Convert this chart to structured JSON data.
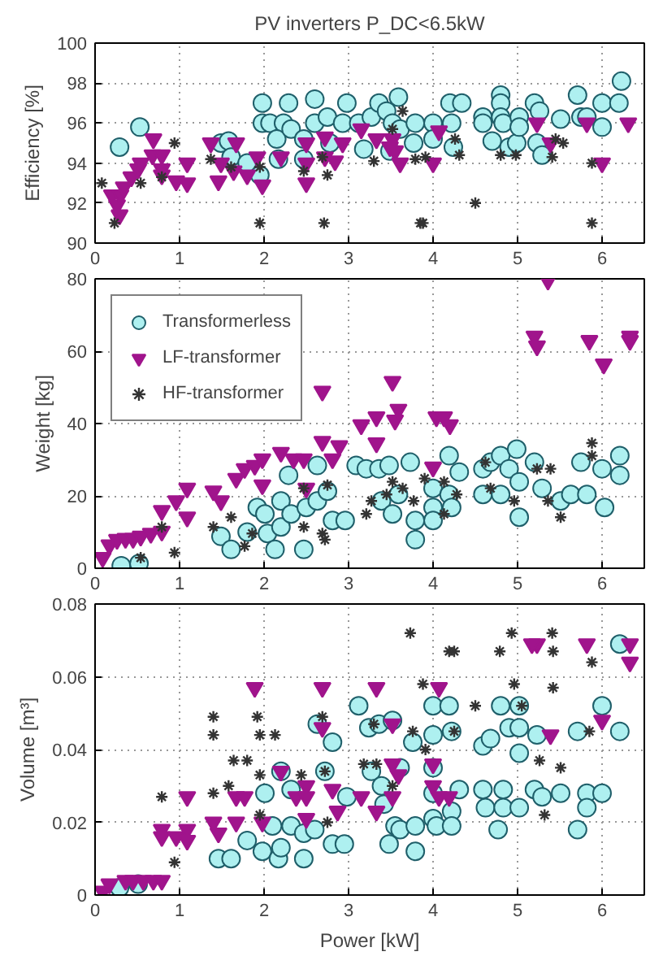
{
  "chart_data": [
    {
      "type": "scatter",
      "title": "PV inverters P_DC<6.5kW",
      "ylabel": "Efficiency [%]",
      "xlim": [
        0,
        6.5
      ],
      "xticks": [
        0,
        1,
        2,
        3,
        4,
        5,
        6
      ],
      "ylim": [
        90,
        100
      ],
      "yticks": [
        90,
        92,
        94,
        96,
        98,
        100
      ],
      "grid": true,
      "series": [
        {
          "color": "#aef0f0",
          "marker": "circle",
          "x": [
            0.29,
            0.53,
            1.49,
            1.58,
            1.61,
            1.8,
            1.95,
            1.98,
            1.98,
            2.07,
            2.23,
            2.15,
            2.17,
            2.29,
            2.32,
            2.47,
            2.47,
            2.6,
            2.6,
            2.75,
            2.78,
            2.93,
            2.98,
            3.12,
            3.18,
            3.27,
            3.36,
            3.45,
            3.52,
            3.59,
            3.49,
            3.61,
            3.77,
            3.79,
            4.0,
            4.0,
            4.2,
            4.34,
            4.22,
            4.24,
            4.59,
            4.59,
            4.7,
            4.8,
            4.8,
            4.8,
            4.83,
            4.9,
            4.99,
            5.02,
            5.02,
            5.2,
            5.23,
            5.26,
            5.29,
            5.51,
            5.71,
            5.75,
            5.82,
            6.0,
            6.0,
            6.2,
            6.23
          ],
          "values": [
            94.8,
            95.8,
            95.0,
            95.1,
            94.3,
            94.0,
            93.4,
            97.0,
            96.0,
            96.0,
            96.0,
            95.2,
            94.2,
            97.0,
            95.7,
            95.2,
            94.2,
            97.2,
            96.0,
            96.3,
            95.0,
            96.0,
            97.0,
            96.0,
            94.7,
            96.3,
            97.0,
            96.6,
            96.0,
            97.3,
            94.6,
            95.7,
            95.0,
            96.0,
            96.0,
            95.2,
            97.0,
            97.0,
            96.0,
            94.8,
            96.3,
            96.0,
            95.1,
            97.4,
            97.0,
            96.3,
            96.0,
            94.8,
            95.0,
            96.3,
            95.8,
            97.0,
            95.0,
            96.6,
            94.4,
            96.2,
            97.4,
            96.3,
            96.3,
            95.8,
            97.0,
            97.0,
            98.1
          ]
        },
        {
          "color": "#a0148c",
          "marker": "triangle",
          "x": [
            0.2,
            0.26,
            0.29,
            0.3,
            0.34,
            0.43,
            0.51,
            0.54,
            0.69,
            0.68,
            0.79,
            0.79,
            0.79,
            0.96,
            1.09,
            1.09,
            1.37,
            1.46,
            1.49,
            1.67,
            1.64,
            1.8,
            1.92,
            1.98,
            2.2,
            2.5,
            2.5,
            2.5,
            2.72,
            2.72,
            2.84,
            2.93,
            3.15,
            3.33,
            3.52,
            3.49,
            3.55,
            3.61,
            4.0,
            4.07,
            5.23,
            5.39,
            5.82,
            6.0,
            6.31
          ],
          "values": [
            92.4,
            91.9,
            91.4,
            92.4,
            92.8,
            93.3,
            93.7,
            94.0,
            95.2,
            94.4,
            94.4,
            93.7,
            93.4,
            93.1,
            93.0,
            94.0,
            95.0,
            93.1,
            94.0,
            95.0,
            93.6,
            93.4,
            94.3,
            92.9,
            94.3,
            95.0,
            94.0,
            93.0,
            95.3,
            94.3,
            94.1,
            95.0,
            95.7,
            95.2,
            95.2,
            94.8,
            94.6,
            94.0,
            94.0,
            95.6,
            96.0,
            95.0,
            96.0,
            94.0,
            96.0
          ]
        },
        {
          "color": "#333333",
          "marker": "cross",
          "x": [
            0.08,
            0.23,
            0.54,
            0.79,
            0.94,
            1.37,
            1.61,
            1.95,
            1.95,
            2.47,
            2.69,
            2.71,
            2.75,
            3.3,
            3.64,
            3.52,
            3.79,
            3.85,
            3.88,
            3.91,
            4.26,
            4.31,
            4.5,
            4.8,
            4.98,
            5.41,
            5.45,
            5.54,
            5.88,
            5.88
          ],
          "values": [
            93.0,
            91.0,
            93.0,
            93.3,
            95.0,
            94.2,
            93.8,
            91.0,
            93.8,
            93.6,
            94.3,
            91.0,
            93.4,
            94.1,
            96.6,
            95.7,
            94.2,
            91.0,
            91.0,
            94.3,
            95.2,
            94.4,
            92.0,
            94.4,
            94.4,
            94.3,
            95.2,
            95.0,
            91.0,
            94.0
          ]
        }
      ]
    },
    {
      "type": "scatter",
      "ylabel": "Weight [kg]",
      "xlim": [
        0,
        6.5
      ],
      "xticks": [
        0,
        1,
        2,
        3,
        4,
        5,
        6
      ],
      "ylim": [
        0,
        80
      ],
      "yticks": [
        0,
        20,
        40,
        60,
        80
      ],
      "grid": true,
      "legend": "top left",
      "series": [
        {
          "name": "Transformerless",
          "color": "#aef0f0",
          "marker": "circle",
          "x": [
            0.31,
            0.52,
            1.49,
            1.61,
            1.8,
            1.92,
            2.01,
            2.04,
            2.13,
            2.2,
            2.2,
            2.29,
            2.32,
            2.47,
            2.5,
            2.63,
            2.63,
            2.75,
            2.81,
            2.96,
            3.09,
            3.21,
            3.36,
            3.48,
            3.39,
            3.52,
            3.59,
            3.73,
            3.79,
            3.79,
            4.0,
            4.0,
            4.0,
            4.19,
            4.19,
            4.22,
            4.31,
            4.59,
            4.59,
            4.68,
            4.8,
            4.8,
            4.9,
            4.99,
            5.02,
            5.02,
            5.2,
            5.29,
            5.51,
            5.63,
            5.82,
            5.75,
            6.0,
            6.03,
            6.21,
            6.21
          ],
          "values": [
            0.7,
            1.3,
            8.8,
            5.2,
            10,
            16.8,
            15,
            9.6,
            5.2,
            11.4,
            18.6,
            25.7,
            15,
            5.2,
            16.8,
            28.4,
            18.6,
            21.3,
            13.2,
            13.2,
            28.4,
            27.5,
            27.5,
            28.4,
            18.6,
            15,
            20.4,
            29.3,
            13.2,
            7.9,
            22.1,
            16.8,
            13.2,
            31.1,
            20.4,
            16.8,
            26.6,
            27.5,
            20.4,
            29.3,
            31.1,
            20.4,
            27.5,
            32.9,
            23.9,
            14.1,
            29.3,
            22.1,
            18.6,
            20.4,
            20.4,
            29.3,
            27.5,
            16.8,
            31.1,
            25.7
          ]
        },
        {
          "name": "LF-transformer",
          "color": "#a0148c",
          "marker": "triangle",
          "x": [
            0.09,
            0.17,
            0.26,
            0.36,
            0.45,
            0.54,
            0.66,
            0.79,
            0.79,
            0.96,
            1.09,
            1.09,
            1.4,
            1.49,
            1.67,
            1.77,
            1.89,
            1.98,
            1.98,
            2.2,
            2.35,
            2.47,
            2.5,
            2.69,
            2.69,
            2.81,
            2.89,
            3.15,
            3.33,
            3.33,
            3.52,
            3.55,
            3.59,
            4.0,
            4.04,
            4.13,
            4.2,
            5.36,
            5.2,
            5.23,
            5.85,
            6.02,
            6.33,
            6.33
          ],
          "values": [
            2.9,
            6.4,
            7.9,
            8.2,
            8.2,
            8.8,
            9.6,
            10.2,
            15.9,
            18.6,
            22.1,
            14.1,
            21.3,
            18.6,
            24.8,
            27.5,
            28.4,
            30.2,
            23.0,
            32.0,
            30.2,
            30.2,
            22.1,
            48.9,
            35,
            30.2,
            33.8,
            39.6,
            41.8,
            34.6,
            51.6,
            40.9,
            43.9,
            27.9,
            41.8,
            41.8,
            39.6,
            79.6,
            64.1,
            61.4,
            62.9,
            56.4,
            64.1,
            62.9
          ]
        },
        {
          "name": "HF-transformer",
          "color": "#333333",
          "marker": "cross",
          "x": [
            0.54,
            0.79,
            0.94,
            1.4,
            1.61,
            1.77,
            1.86,
            2.47,
            2.47,
            2.69,
            2.72,
            2.75,
            3.21,
            3.27,
            3.45,
            3.52,
            3.64,
            3.77,
            3.9,
            4.13,
            4.13,
            4.28,
            4.62,
            4.68,
            4.96,
            5.23,
            5.39,
            5.36,
            5.51,
            5.88,
            5.88
          ],
          "values": [
            2.9,
            11.4,
            4.3,
            11.4,
            14.1,
            6.1,
            9.6,
            22.1,
            11.4,
            9.6,
            7.9,
            23.0,
            15,
            18.6,
            20.4,
            23.9,
            22.1,
            18.6,
            24.8,
            23.9,
            15,
            20.4,
            29.3,
            22.1,
            18.6,
            27.5,
            27.5,
            18.6,
            14.1,
            34.6,
            31.1
          ]
        }
      ]
    },
    {
      "type": "scatter",
      "xlabel": "Power [kW]",
      "ylabel": "Volume [m³]",
      "xlim": [
        0,
        6.5
      ],
      "xticks": [
        0,
        1,
        2,
        3,
        4,
        5,
        6
      ],
      "ylim": [
        0,
        0.08
      ],
      "yticks": [
        0,
        0.02,
        0.04,
        0.06,
        0.08
      ],
      "grid": true,
      "series": [
        {
          "color": "#aef0f0",
          "marker": "circle",
          "x": [
            0.29,
            0.51,
            1.46,
            1.61,
            1.8,
            1.98,
            2.01,
            2.1,
            2.17,
            2.2,
            2.2,
            2.32,
            2.32,
            2.47,
            2.47,
            2.6,
            2.63,
            2.72,
            2.81,
            2.81,
            2.95,
            2.98,
            3.12,
            3.24,
            3.27,
            3.36,
            3.39,
            3.42,
            3.48,
            3.52,
            3.55,
            3.61,
            3.61,
            3.79,
            3.79,
            3.76,
            4.0,
            4.0,
            4.0,
            4.0,
            4.0,
            4.04,
            4.19,
            4.22,
            4.22,
            4.22,
            4.31,
            4.59,
            4.59,
            4.62,
            4.68,
            4.77,
            4.8,
            4.83,
            4.83,
            4.9,
            5.02,
            5.02,
            5.02,
            5.02,
            5.2,
            5.23,
            5.29,
            5.51,
            5.71,
            5.71,
            5.82,
            5.82,
            6.0,
            6.0,
            6.21,
            6.21
          ],
          "values": [
            0.002,
            0.003,
            0.01,
            0.01,
            0.015,
            0.012,
            0.028,
            0.019,
            0.01,
            0.034,
            0.013,
            0.029,
            0.019,
            0.01,
            0.017,
            0.018,
            0.047,
            0.034,
            0.042,
            0.014,
            0.014,
            0.027,
            0.052,
            0.046,
            0.034,
            0.047,
            0.03,
            0.025,
            0.014,
            0.048,
            0.019,
            0.035,
            0.018,
            0.012,
            0.019,
            0.042,
            0.052,
            0.044,
            0.035,
            0.028,
            0.021,
            0.019,
            0.052,
            0.045,
            0.023,
            0.019,
            0.029,
            0.029,
            0.041,
            0.024,
            0.043,
            0.018,
            0.052,
            0.029,
            0.024,
            0.046,
            0.046,
            0.039,
            0.024,
            0.052,
            0.029,
            0.044,
            0.027,
            0.028,
            0.045,
            0.018,
            0.028,
            0.024,
            0.028,
            0.052,
            0.045,
            0.069
          ]
        },
        {
          "color": "#a0148c",
          "marker": "triangle",
          "x": [
            0.09,
            0.17,
            0.36,
            0.45,
            0.57,
            0.69,
            0.79,
            0.79,
            0.79,
            0.96,
            1.09,
            1.09,
            1.09,
            1.4,
            1.46,
            1.67,
            1.77,
            1.67,
            1.89,
            1.98,
            2.2,
            2.38,
            2.5,
            2.5,
            2.5,
            2.69,
            2.69,
            2.81,
            2.87,
            3.15,
            3.33,
            3.33,
            3.52,
            3.52,
            3.52,
            3.59,
            4.0,
            4.0,
            4.07,
            4.07,
            4.19,
            5.23,
            5.17,
            5.39,
            5.82,
            6.0,
            6.33,
            6.33
          ],
          "values": [
            0.001,
            0.003,
            0.004,
            0.004,
            0.004,
            0.004,
            0.004,
            0.018,
            0.016,
            0.016,
            0.027,
            0.018,
            0.015,
            0.02,
            0.017,
            0.027,
            0.027,
            0.02,
            0.057,
            0.02,
            0.034,
            0.027,
            0.03,
            0.027,
            0.021,
            0.057,
            0.046,
            0.029,
            0.023,
            0.027,
            0.057,
            0.023,
            0.047,
            0.036,
            0.027,
            0.033,
            0.036,
            0.03,
            0.027,
            0.057,
            0.027,
            0.069,
            0.069,
            0.044,
            0.069,
            0.048,
            0.069,
            0.064
          ]
        },
        {
          "color": "#333333",
          "marker": "cross",
          "x": [
            0.79,
            0.94,
            1.4,
            1.4,
            1.4,
            1.58,
            1.64,
            1.8,
            1.92,
            1.95,
            1.95,
            1.95,
            2.13,
            2.44,
            2.69,
            2.72,
            2.75,
            3.18,
            3.3,
            3.33,
            3.52,
            3.73,
            3.76,
            3.88,
            3.91,
            4.19,
            4.25,
            4.25,
            4.5,
            4.79,
            4.93,
            4.96,
            5.05,
            5.26,
            5.32,
            5.41,
            5.42,
            5.42,
            5.51,
            5.85,
            5.88
          ],
          "values": [
            0.027,
            0.009,
            0.049,
            0.044,
            0.028,
            0.03,
            0.037,
            0.037,
            0.049,
            0.044,
            0.033,
            0.022,
            0.044,
            0.033,
            0.049,
            0.034,
            0.02,
            0.036,
            0.047,
            0.036,
            0.03,
            0.072,
            0.045,
            0.058,
            0.04,
            0.067,
            0.067,
            0.045,
            0.052,
            0.067,
            0.072,
            0.058,
            0.052,
            0.037,
            0.022,
            0.072,
            0.067,
            0.057,
            0.035,
            0.045,
            0.064
          ]
        }
      ]
    }
  ]
}
